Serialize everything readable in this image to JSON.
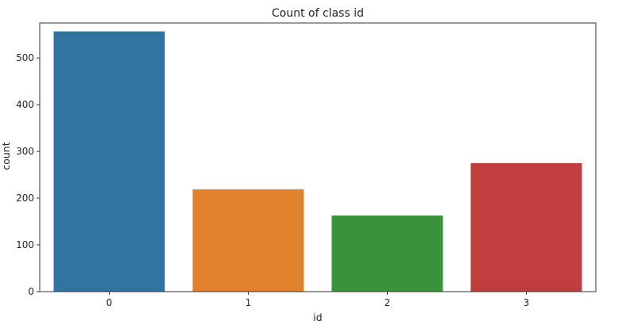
{
  "chart_data": {
    "type": "bar",
    "title": "Count of class id",
    "xlabel": "id",
    "ylabel": "count",
    "categories": [
      "0",
      "1",
      "2",
      "3"
    ],
    "values": [
      557,
      219,
      163,
      275
    ],
    "colors": [
      "#3274a1",
      "#e1812c",
      "#3a923a",
      "#c03d3e"
    ],
    "ylim": [
      0,
      575
    ],
    "yticks": [
      0,
      100,
      200,
      300,
      400,
      500
    ],
    "grid": false,
    "legend": "none"
  }
}
